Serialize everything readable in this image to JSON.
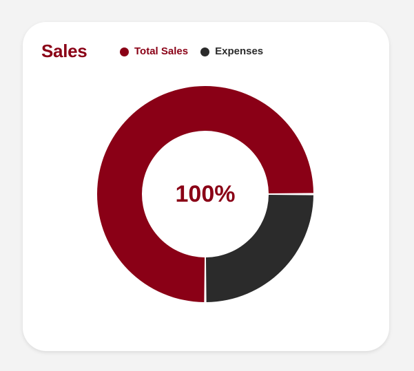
{
  "card": {
    "title": "Sales"
  },
  "colors": {
    "accent": "#8a0016",
    "dark": "#2b2b2b",
    "background": "#f3f3f3",
    "card": "#ffffff"
  },
  "chart_data": {
    "type": "pie",
    "title": "Sales",
    "center_label": "100%",
    "legend_position": "top",
    "series": [
      {
        "name": "Total Sales",
        "value": 75,
        "color": "#8a0016"
      },
      {
        "name": "Expenses",
        "value": 25,
        "color": "#2b2b2b"
      }
    ]
  }
}
